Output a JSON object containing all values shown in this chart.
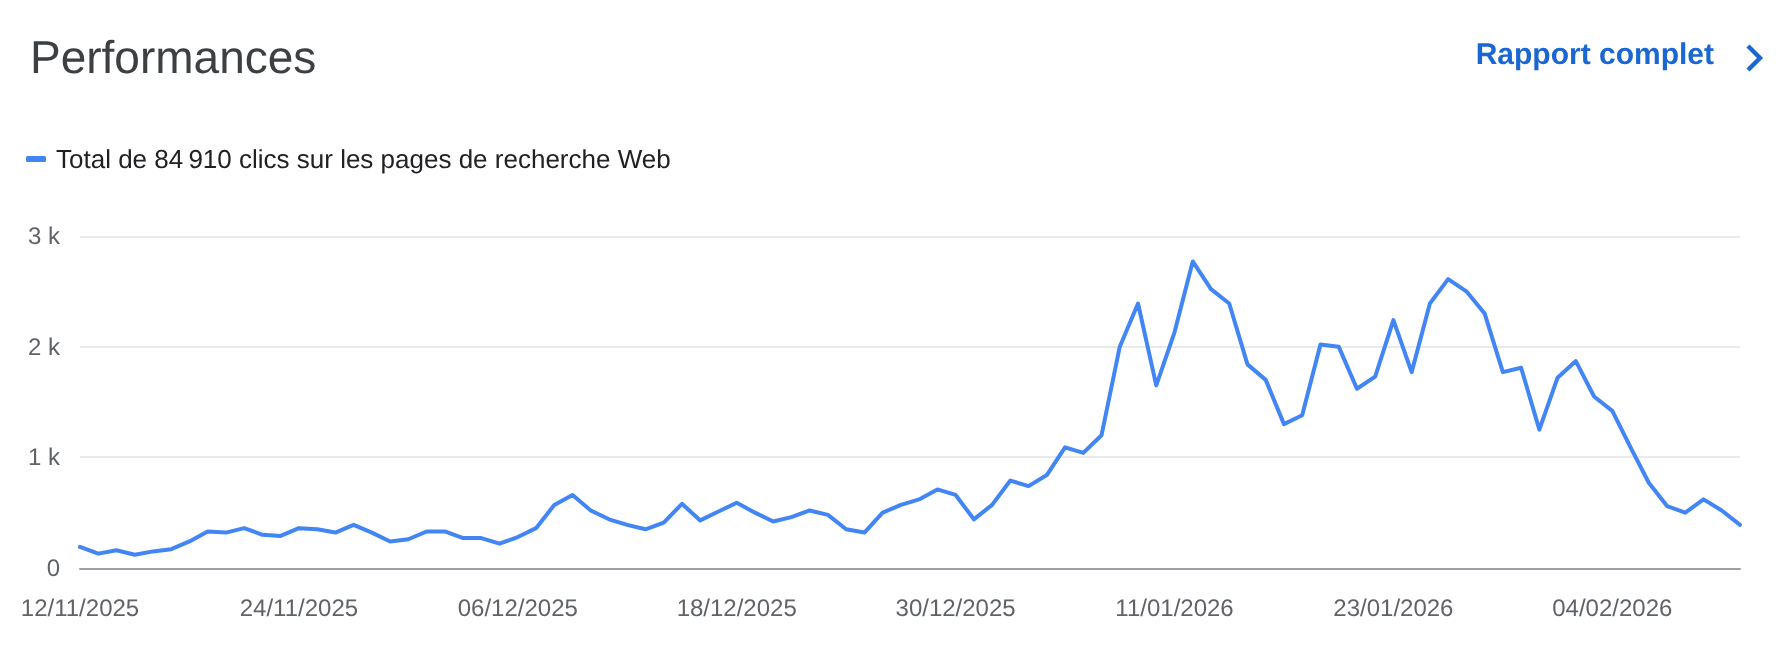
{
  "chart_data": {
    "type": "line",
    "title": "Performances",
    "annotations": [
      "Rapport complet"
    ],
    "x": [
      "2025-11-12",
      "2025-11-13",
      "2025-11-14",
      "2025-11-15",
      "2025-11-16",
      "2025-11-17",
      "2025-11-18",
      "2025-11-19",
      "2025-11-20",
      "2025-11-21",
      "2025-11-22",
      "2025-11-23",
      "2025-11-24",
      "2025-11-25",
      "2025-11-26",
      "2025-11-27",
      "2025-11-28",
      "2025-11-29",
      "2025-11-30",
      "2025-12-01",
      "2025-12-02",
      "2025-12-03",
      "2025-12-04",
      "2025-12-05",
      "2025-12-06",
      "2025-12-07",
      "2025-12-08",
      "2025-12-09",
      "2025-12-10",
      "2025-12-11",
      "2025-12-12",
      "2025-12-13",
      "2025-12-14",
      "2025-12-15",
      "2025-12-16",
      "2025-12-17",
      "2025-12-18",
      "2025-12-19",
      "2025-12-20",
      "2025-12-21",
      "2025-12-22",
      "2025-12-23",
      "2025-12-24",
      "2025-12-25",
      "2025-12-26",
      "2025-12-27",
      "2025-12-28",
      "2025-12-29",
      "2025-12-30",
      "2025-12-31",
      "2026-01-01",
      "2026-01-02",
      "2026-01-03",
      "2026-01-04",
      "2026-01-05",
      "2026-01-06",
      "2026-01-07",
      "2026-01-08",
      "2026-01-09",
      "2026-01-10",
      "2026-01-11",
      "2026-01-12",
      "2026-01-13",
      "2026-01-14",
      "2026-01-15",
      "2026-01-16",
      "2026-01-17",
      "2026-01-18",
      "2026-01-19",
      "2026-01-20",
      "2026-01-21",
      "2026-01-22",
      "2026-01-23",
      "2026-01-24",
      "2026-01-25",
      "2026-01-26",
      "2026-01-27",
      "2026-01-28",
      "2026-01-29",
      "2026-01-30",
      "2026-01-31",
      "2026-02-01",
      "2026-02-02",
      "2026-02-03",
      "2026-02-04",
      "2026-02-05",
      "2026-02-06",
      "2026-02-07",
      "2026-02-08",
      "2026-02-09",
      "2026-02-10",
      "2026-02-11"
    ],
    "series": [
      {
        "name": "Total de 84 910 clics sur les pages de recherche Web",
        "color": "#4285f4",
        "values": [
          190,
          130,
          160,
          120,
          150,
          170,
          240,
          330,
          320,
          360,
          300,
          290,
          360,
          350,
          320,
          390,
          320,
          240,
          260,
          330,
          330,
          270,
          270,
          220,
          280,
          360,
          570,
          660,
          520,
          440,
          390,
          350,
          410,
          580,
          430,
          510,
          590,
          500,
          420,
          460,
          520,
          480,
          350,
          320,
          500,
          570,
          620,
          710,
          660,
          440,
          570,
          790,
          740,
          840,
          1090,
          1040,
          1200,
          2000,
          2390,
          1650,
          2130,
          2770,
          2520,
          2390,
          1840,
          1700,
          1300,
          1380,
          2020,
          2000,
          1620,
          1730,
          2240,
          1770,
          2390,
          2610,
          2500,
          2300,
          1770,
          1810,
          1250,
          1720,
          1870,
          1550,
          1420,
          1090,
          770,
          560,
          500,
          620,
          520,
          390
        ]
      }
    ],
    "xlim": [
      "2025-11-12",
      "2026-02-11"
    ],
    "xticks": [
      {
        "value": "2025-11-12",
        "label": "12/11/2025"
      },
      {
        "value": "2025-11-24",
        "label": "24/11/2025"
      },
      {
        "value": "2025-12-06",
        "label": "06/12/2025"
      },
      {
        "value": "2025-12-18",
        "label": "18/12/2025"
      },
      {
        "value": "2025-12-30",
        "label": "30/12/2025"
      },
      {
        "value": "2026-01-11",
        "label": "11/01/2026"
      },
      {
        "value": "2026-01-23",
        "label": "23/01/2026"
      },
      {
        "value": "2026-02-04",
        "label": "04/02/2026"
      }
    ],
    "ylim": [
      0,
      3000
    ],
    "yticks": [
      0,
      {
        "value": 1000,
        "label": "1 k"
      },
      {
        "value": 2000,
        "label": "2 k"
      },
      {
        "value": 3000,
        "label": "3 k"
      }
    ],
    "grid": "y",
    "legend": "top left",
    "marker": "none",
    "line_style": "solid"
  }
}
